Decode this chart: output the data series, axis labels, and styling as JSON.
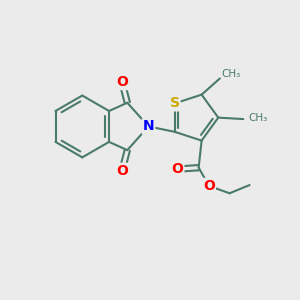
{
  "bg_color": "#ebebeb",
  "bond_color": "#4a7a6a",
  "bond_width": 1.5,
  "atom_colors": {
    "O": "#ff0000",
    "N": "#0000ff",
    "S": "#ccaa00",
    "C": "#4a7a6a"
  },
  "figsize": [
    3.0,
    3.0
  ],
  "dpi": 100,
  "xlim": [
    0,
    10
  ],
  "ylim": [
    0,
    10
  ]
}
